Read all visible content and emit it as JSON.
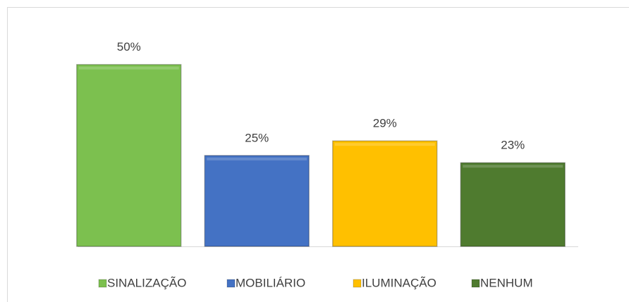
{
  "chart_data": {
    "type": "bar",
    "ylim": [
      0,
      60
    ],
    "series": [
      {
        "name": "SINALIZAÇÃO",
        "color": "#7cc04f",
        "values": [
          50
        ],
        "value_labels": [
          "50%"
        ]
      },
      {
        "name": "MOBILIÁRIO",
        "color": "#4472c4",
        "values": [
          25
        ],
        "value_labels": [
          "25%"
        ]
      },
      {
        "name": "ILUMINAÇÃO",
        "color": "#ffc000",
        "values": [
          29
        ],
        "value_labels": [
          "29%"
        ]
      },
      {
        "name": "NENHUM",
        "color": "#4f7b2f",
        "values": [
          23
        ],
        "value_labels": [
          "23%"
        ]
      }
    ]
  }
}
